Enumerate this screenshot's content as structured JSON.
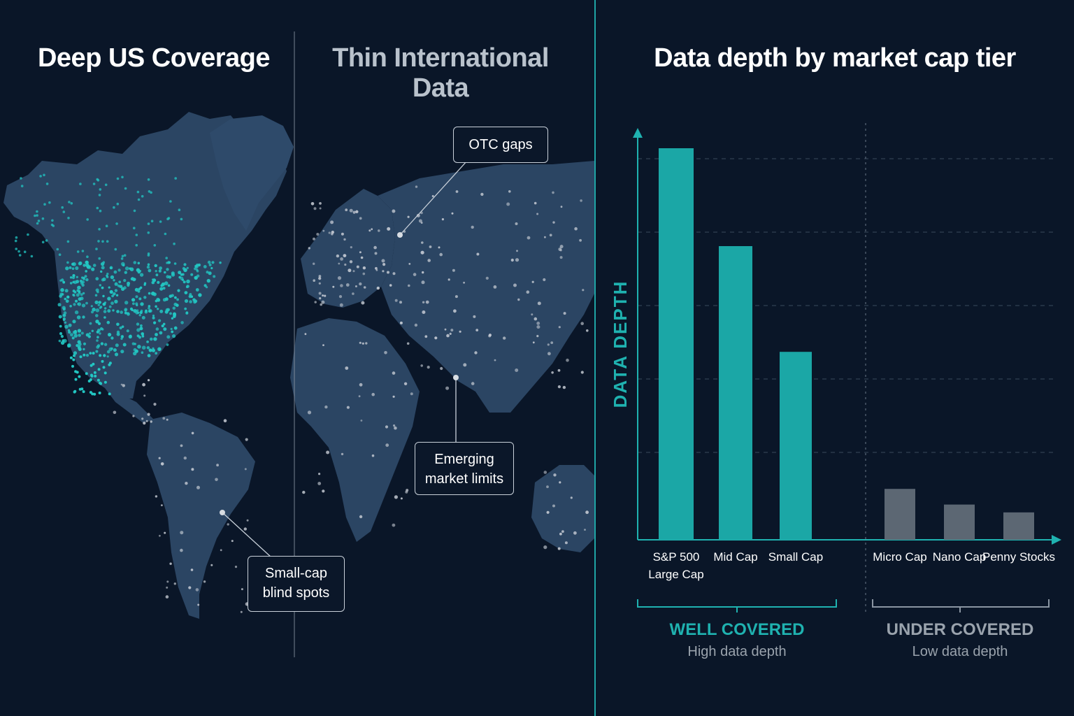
{
  "map": {
    "title_left": "Deep US Coverage",
    "title_right": "Thin International Data",
    "callouts": {
      "otc": "OTC gaps",
      "emerging": "Emerging market limits",
      "smallcap": "Small-cap blind spots"
    },
    "colors": {
      "us_dots": "#22c7c3",
      "intl_dots": "#c9ced6",
      "land": "#2b4563",
      "ocean": "#0a1628"
    }
  },
  "chart_data": {
    "type": "bar",
    "title": "Data depth by market cap tier",
    "ylabel": "DATA DEPTH",
    "xlabel": "",
    "ylim": [
      0,
      100
    ],
    "grid": "dashed horizontal",
    "categories": [
      "S&P 500 Large Cap",
      "Mid Cap",
      "Small Cap",
      "Micro Cap",
      "Nano Cap",
      "Penny Stocks"
    ],
    "category_lines": [
      [
        "S&P 500",
        "Large Cap"
      ],
      [
        "Mid Cap"
      ],
      [
        "Small Cap"
      ],
      [
        "Micro Cap"
      ],
      [
        "Nano Cap"
      ],
      [
        "Penny Stocks"
      ]
    ],
    "values": [
      100,
      75,
      48,
      13,
      9,
      7
    ],
    "groups": [
      {
        "label": "WELL COVERED",
        "sublabel": "High data depth",
        "color": "#1fb2b0"
      },
      {
        "label": "UNDER COVERED",
        "sublabel": "Low data depth",
        "color": "#9aa3ad"
      }
    ],
    "bar_colors": [
      "#1ba7a6",
      "#1ba7a6",
      "#1ba7a6",
      "#5c6773",
      "#5c6773",
      "#5c6773"
    ],
    "axis_color": "#1fb2b0"
  }
}
